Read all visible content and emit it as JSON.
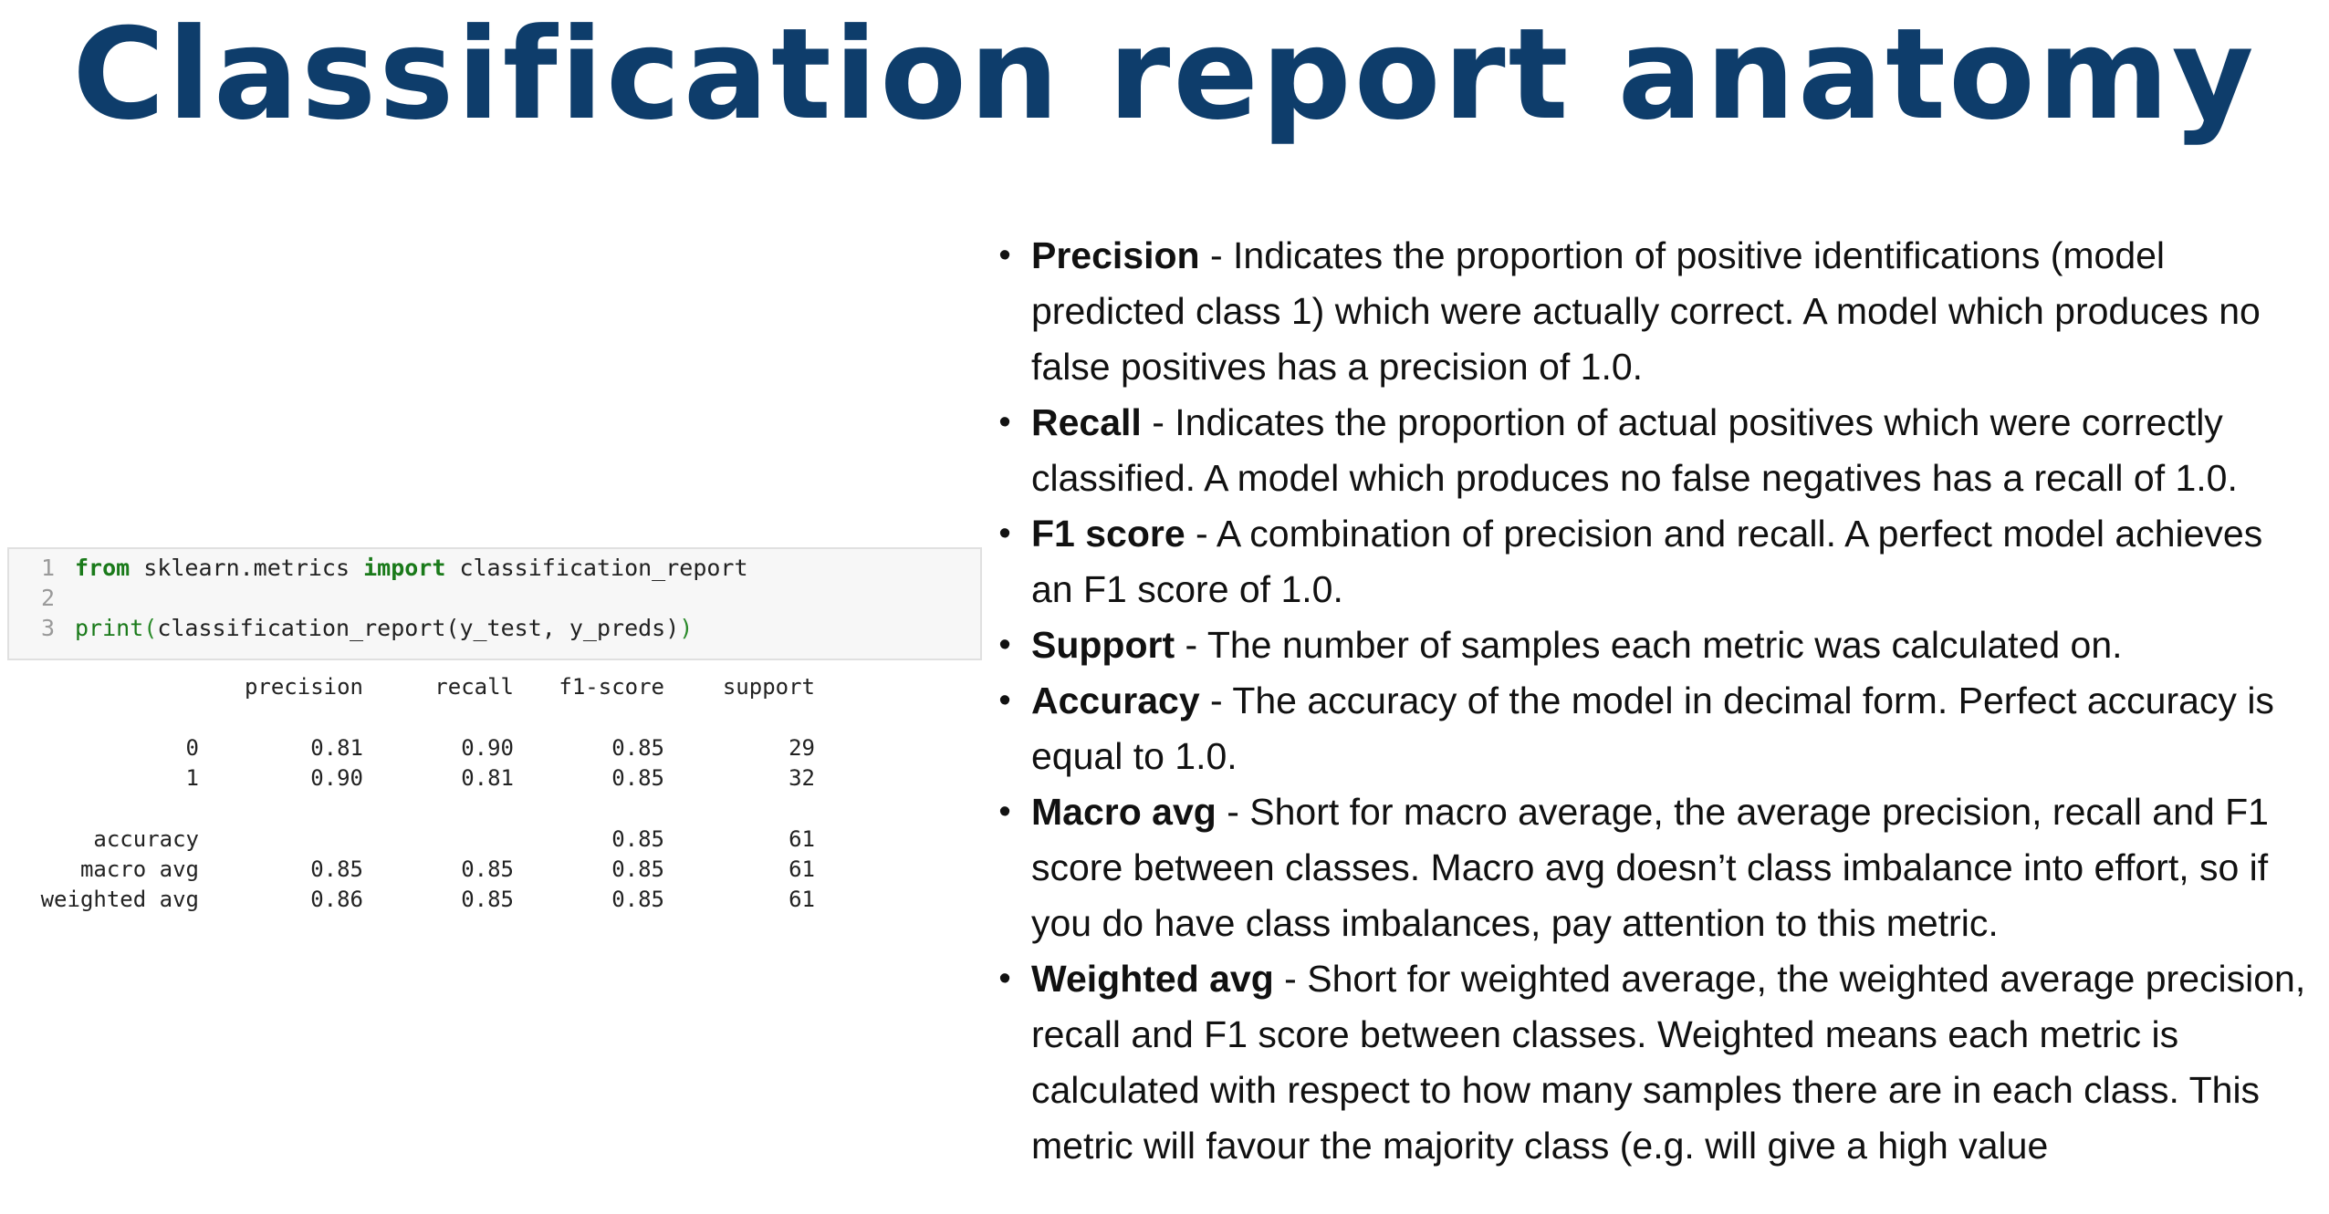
{
  "title": "Classification report anatomy",
  "code": {
    "lines": [
      {
        "num": "1",
        "parts": [
          {
            "text": "from",
            "cls": "kw"
          },
          {
            "text": " sklearn.metrics ",
            "cls": "id"
          },
          {
            "text": "import",
            "cls": "kw"
          },
          {
            "text": " classification_report",
            "cls": "id"
          }
        ]
      },
      {
        "num": "2",
        "parts": []
      },
      {
        "num": "3",
        "parts": [
          {
            "text": "print",
            "cls": "fn"
          },
          {
            "text": "(",
            "cls": "paren"
          },
          {
            "text": "classification_report(y_test, y_preds)",
            "cls": "id"
          },
          {
            "text": ")",
            "cls": "paren"
          }
        ]
      }
    ]
  },
  "report": {
    "headers": [
      "",
      "precision",
      "recall",
      "f1-score",
      "support"
    ],
    "rows": [
      [
        "0",
        "0.81",
        "0.90",
        "0.85",
        "29"
      ],
      [
        "1",
        "0.90",
        "0.81",
        "0.85",
        "32"
      ],
      [
        "accuracy",
        "",
        "",
        "0.85",
        "61"
      ],
      [
        "macro avg",
        "0.85",
        "0.85",
        "0.85",
        "61"
      ],
      [
        "weighted avg",
        "0.86",
        "0.85",
        "0.85",
        "61"
      ]
    ]
  },
  "bullets": [
    {
      "term": "Precision",
      "text": " - Indicates the proportion of positive identifications (model predicted class 1) which were actually correct. A model which produces no false positives has a precision of 1.0."
    },
    {
      "term": "Recall",
      "text": " - Indicates the proportion of actual positives which were correctly classified. A model which produces no false negatives has a recall of 1.0."
    },
    {
      "term": "F1 score",
      "text": " - A combination of precision and recall. A perfect model achieves an F1 score of 1.0."
    },
    {
      "term": "Support",
      "text": " - The number of samples each metric was calculated on."
    },
    {
      "term": "Accuracy",
      "text": " - The accuracy of the model in decimal form. Perfect accuracy is equal to 1.0."
    },
    {
      "term": "Macro avg",
      "text": " - Short for macro average, the average precision, recall and F1 score between classes. Macro avg doesn’t class imbalance into effort, so if you do have class imbalances, pay attention to this metric."
    },
    {
      "term": "Weighted avg",
      "text": " - Short for weighted average, the weighted average precision, recall and F1 score between classes. Weighted means each metric is calculated with respect to how many samples there are in each class. This metric will favour the majority class (e.g. will give a high value"
    }
  ]
}
